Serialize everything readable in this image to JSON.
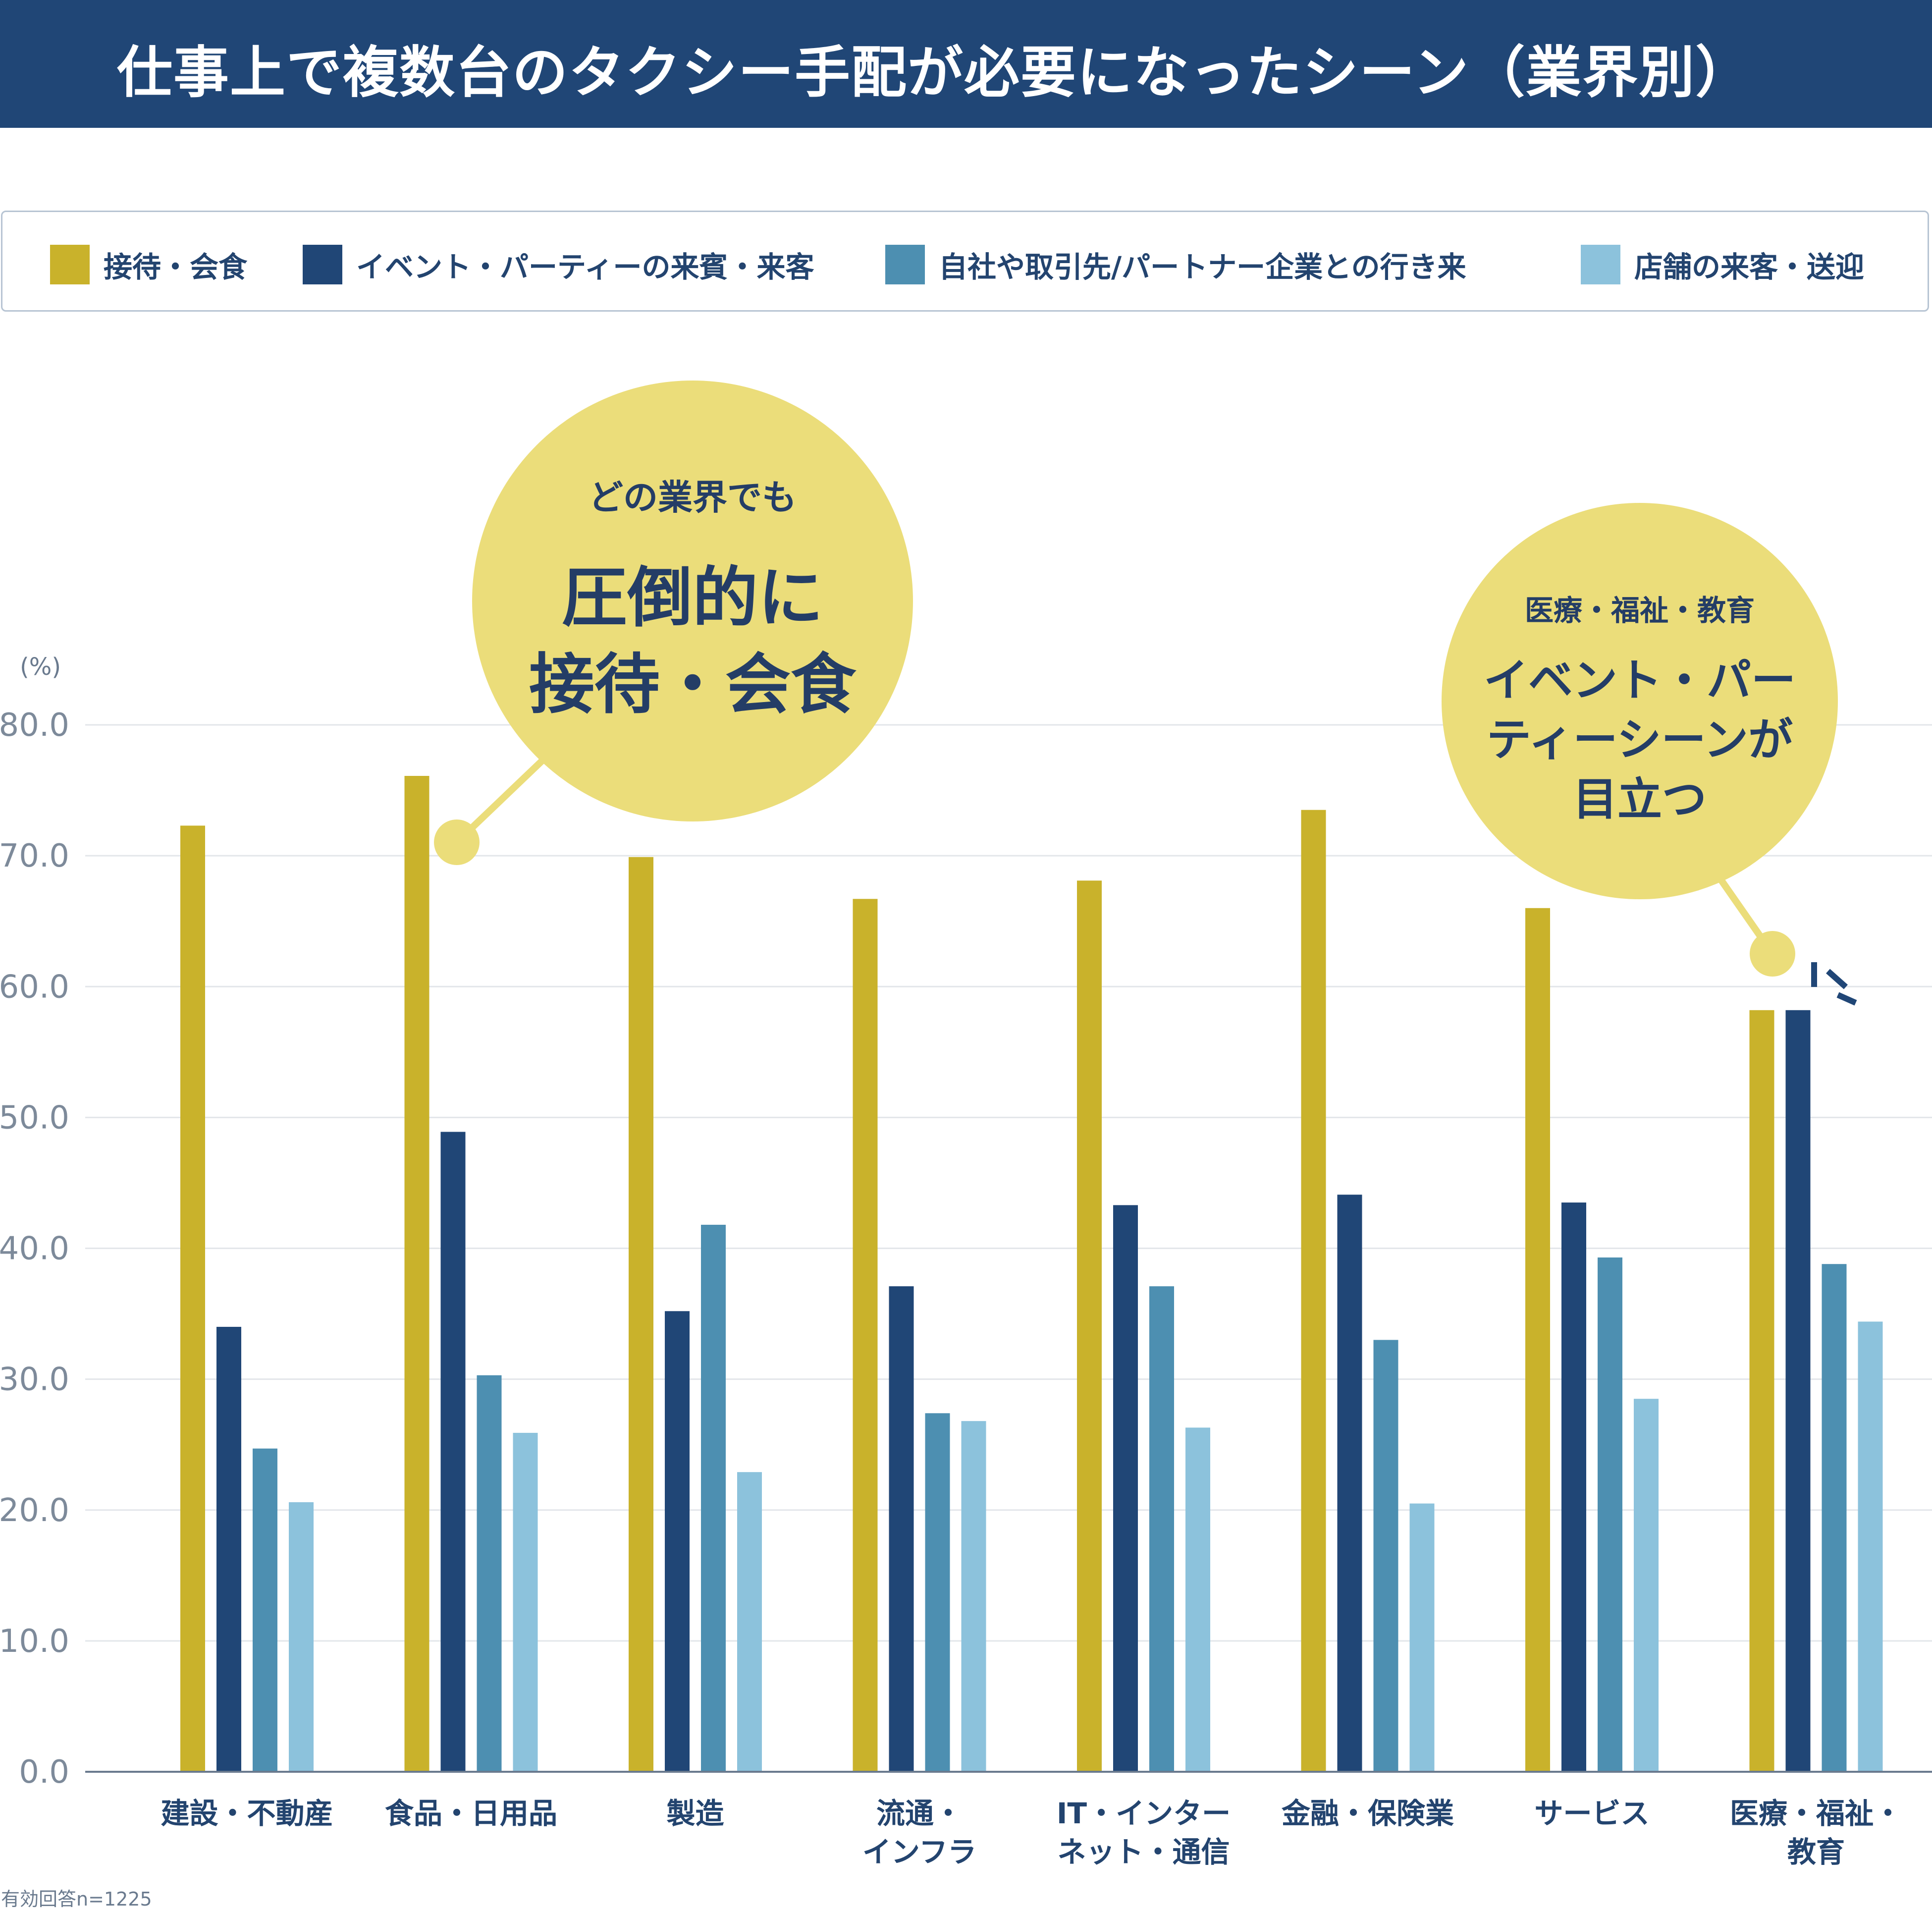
{
  "title": "仕事上で複数台のタクシー手配が必要になったシーン（業界別）",
  "legend": [
    {
      "label": "接待・会食",
      "color": "#c9b22b"
    },
    {
      "label": "イベント・パーティーの来賓・来客",
      "color": "#204676"
    },
    {
      "label": "自社や取引先/パートナー企業との行き来",
      "color": "#4d8fb1"
    },
    {
      "label": "店舗の来客・送迎",
      "color": "#8cc2dc"
    }
  ],
  "callouts": {
    "left": {
      "line1": "どの業界でも",
      "line2": "圧倒的に",
      "line3": "接待・会食",
      "color": "#ebdd7a"
    },
    "right": {
      "line1": "医療・福祉・教育",
      "line2": "イベント・パー",
      "line3": "ティーシーンが",
      "line4": "目立つ",
      "color": "#ebdd7a"
    }
  },
  "footnote": "有効回答n=1225",
  "chart_data": {
    "type": "bar",
    "title": "仕事上で複数台のタクシー手配が必要になったシーン（業界別）",
    "ylabel": "(%)",
    "ylim": [
      0,
      80
    ],
    "yticks": [
      "0.0",
      "10.0",
      "20.0",
      "30.0",
      "40.0",
      "50.0",
      "60.0",
      "70.0",
      "80.0"
    ],
    "categories": [
      [
        "建設・不動産"
      ],
      [
        "食品・日用品"
      ],
      [
        "製造"
      ],
      [
        "流通・",
        "インフラ"
      ],
      [
        "IT・インター",
        "ネット・通信"
      ],
      [
        "金融・保険業"
      ],
      [
        "サービス"
      ],
      [
        "医療・福祉・",
        "教育"
      ]
    ],
    "series": [
      {
        "name": "接待・会食",
        "color": "#c9b22b",
        "values": [
          72.3,
          76.1,
          69.9,
          66.7,
          68.1,
          73.5,
          66.0,
          58.2
        ]
      },
      {
        "name": "イベント・パーティーの来賓・来客",
        "color": "#204676",
        "values": [
          34.0,
          48.9,
          35.2,
          37.1,
          43.3,
          44.1,
          43.5,
          58.2
        ]
      },
      {
        "name": "自社や取引先/パートナー企業との行き来",
        "color": "#4d8fb1",
        "values": [
          24.7,
          30.3,
          41.8,
          27.4,
          37.1,
          33.0,
          39.3,
          38.8
        ]
      },
      {
        "name": "店舗の来客・送迎",
        "color": "#8cc2dc",
        "values": [
          20.6,
          25.9,
          22.9,
          26.8,
          26.3,
          20.5,
          28.5,
          34.4
        ]
      }
    ]
  }
}
